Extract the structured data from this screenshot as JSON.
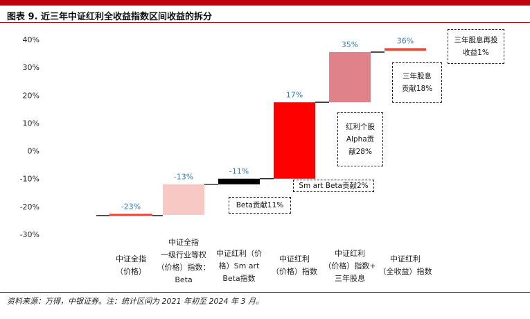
{
  "title": "图表 9. 近三年中证红利全收益指数区间收益的拆分",
  "source": "资料来源：万得，中银证券。注：统计区间为 2021 年初至 2024 年 3 月。",
  "chart_data": {
    "type": "bar",
    "subtype": "waterfall",
    "categories": [
      "中证全指（价格）",
      "中证全指一级行业等权（价格）指数：Beta",
      "中证红利（价格）Smart Beta指数",
      "中证红利（价格）指数",
      "中证红利（价格）指数+三年股息",
      "中证红利（全收益）指数"
    ],
    "ylim": [
      -30,
      40
    ],
    "yticks": [
      -30,
      -20,
      -10,
      0,
      10,
      20,
      30,
      40
    ],
    "ytick_labels": [
      "-30%",
      "-20%",
      "-10%",
      "0%",
      "10%",
      "20%",
      "30%",
      "40%"
    ],
    "series": [
      {
        "base": -23,
        "top": -22.6,
        "label": "-23%",
        "color": "#e8473a"
      },
      {
        "base": -23,
        "top": -12,
        "label": "-13%",
        "color": "#f8c8c4"
      },
      {
        "base": -12,
        "top": -10,
        "label": "-11%",
        "color": "#000000"
      },
      {
        "base": -10,
        "top": 17.5,
        "label": "17%",
        "color": "#ff0000"
      },
      {
        "base": 17.5,
        "top": 35.5,
        "label": "35%",
        "color": "#e0828a"
      },
      {
        "base": 36,
        "top": 36.9,
        "label": "36%",
        "color": "#e8473a"
      }
    ],
    "grid": false,
    "label_color": "#2e7ec4",
    "annotations": [
      "Beta贡献11%",
      "Sm art Beta贡献2%",
      "红利个股\nAlpha贡\n献28%",
      "三年股息\n贡献18%",
      "三年股息再投\n收益1%"
    ],
    "xlabels": [
      "中证全指\n（价格）",
      "中证全指\n一级行业等权\n（价格）指数：\nBeta",
      "中证红利（价\n格）Sm art\nBeta指数",
      "中证红利\n（价格）指数",
      "中证红利\n（价格）指数+\n三年股息",
      "中证红利\n（全收益）指数"
    ]
  }
}
